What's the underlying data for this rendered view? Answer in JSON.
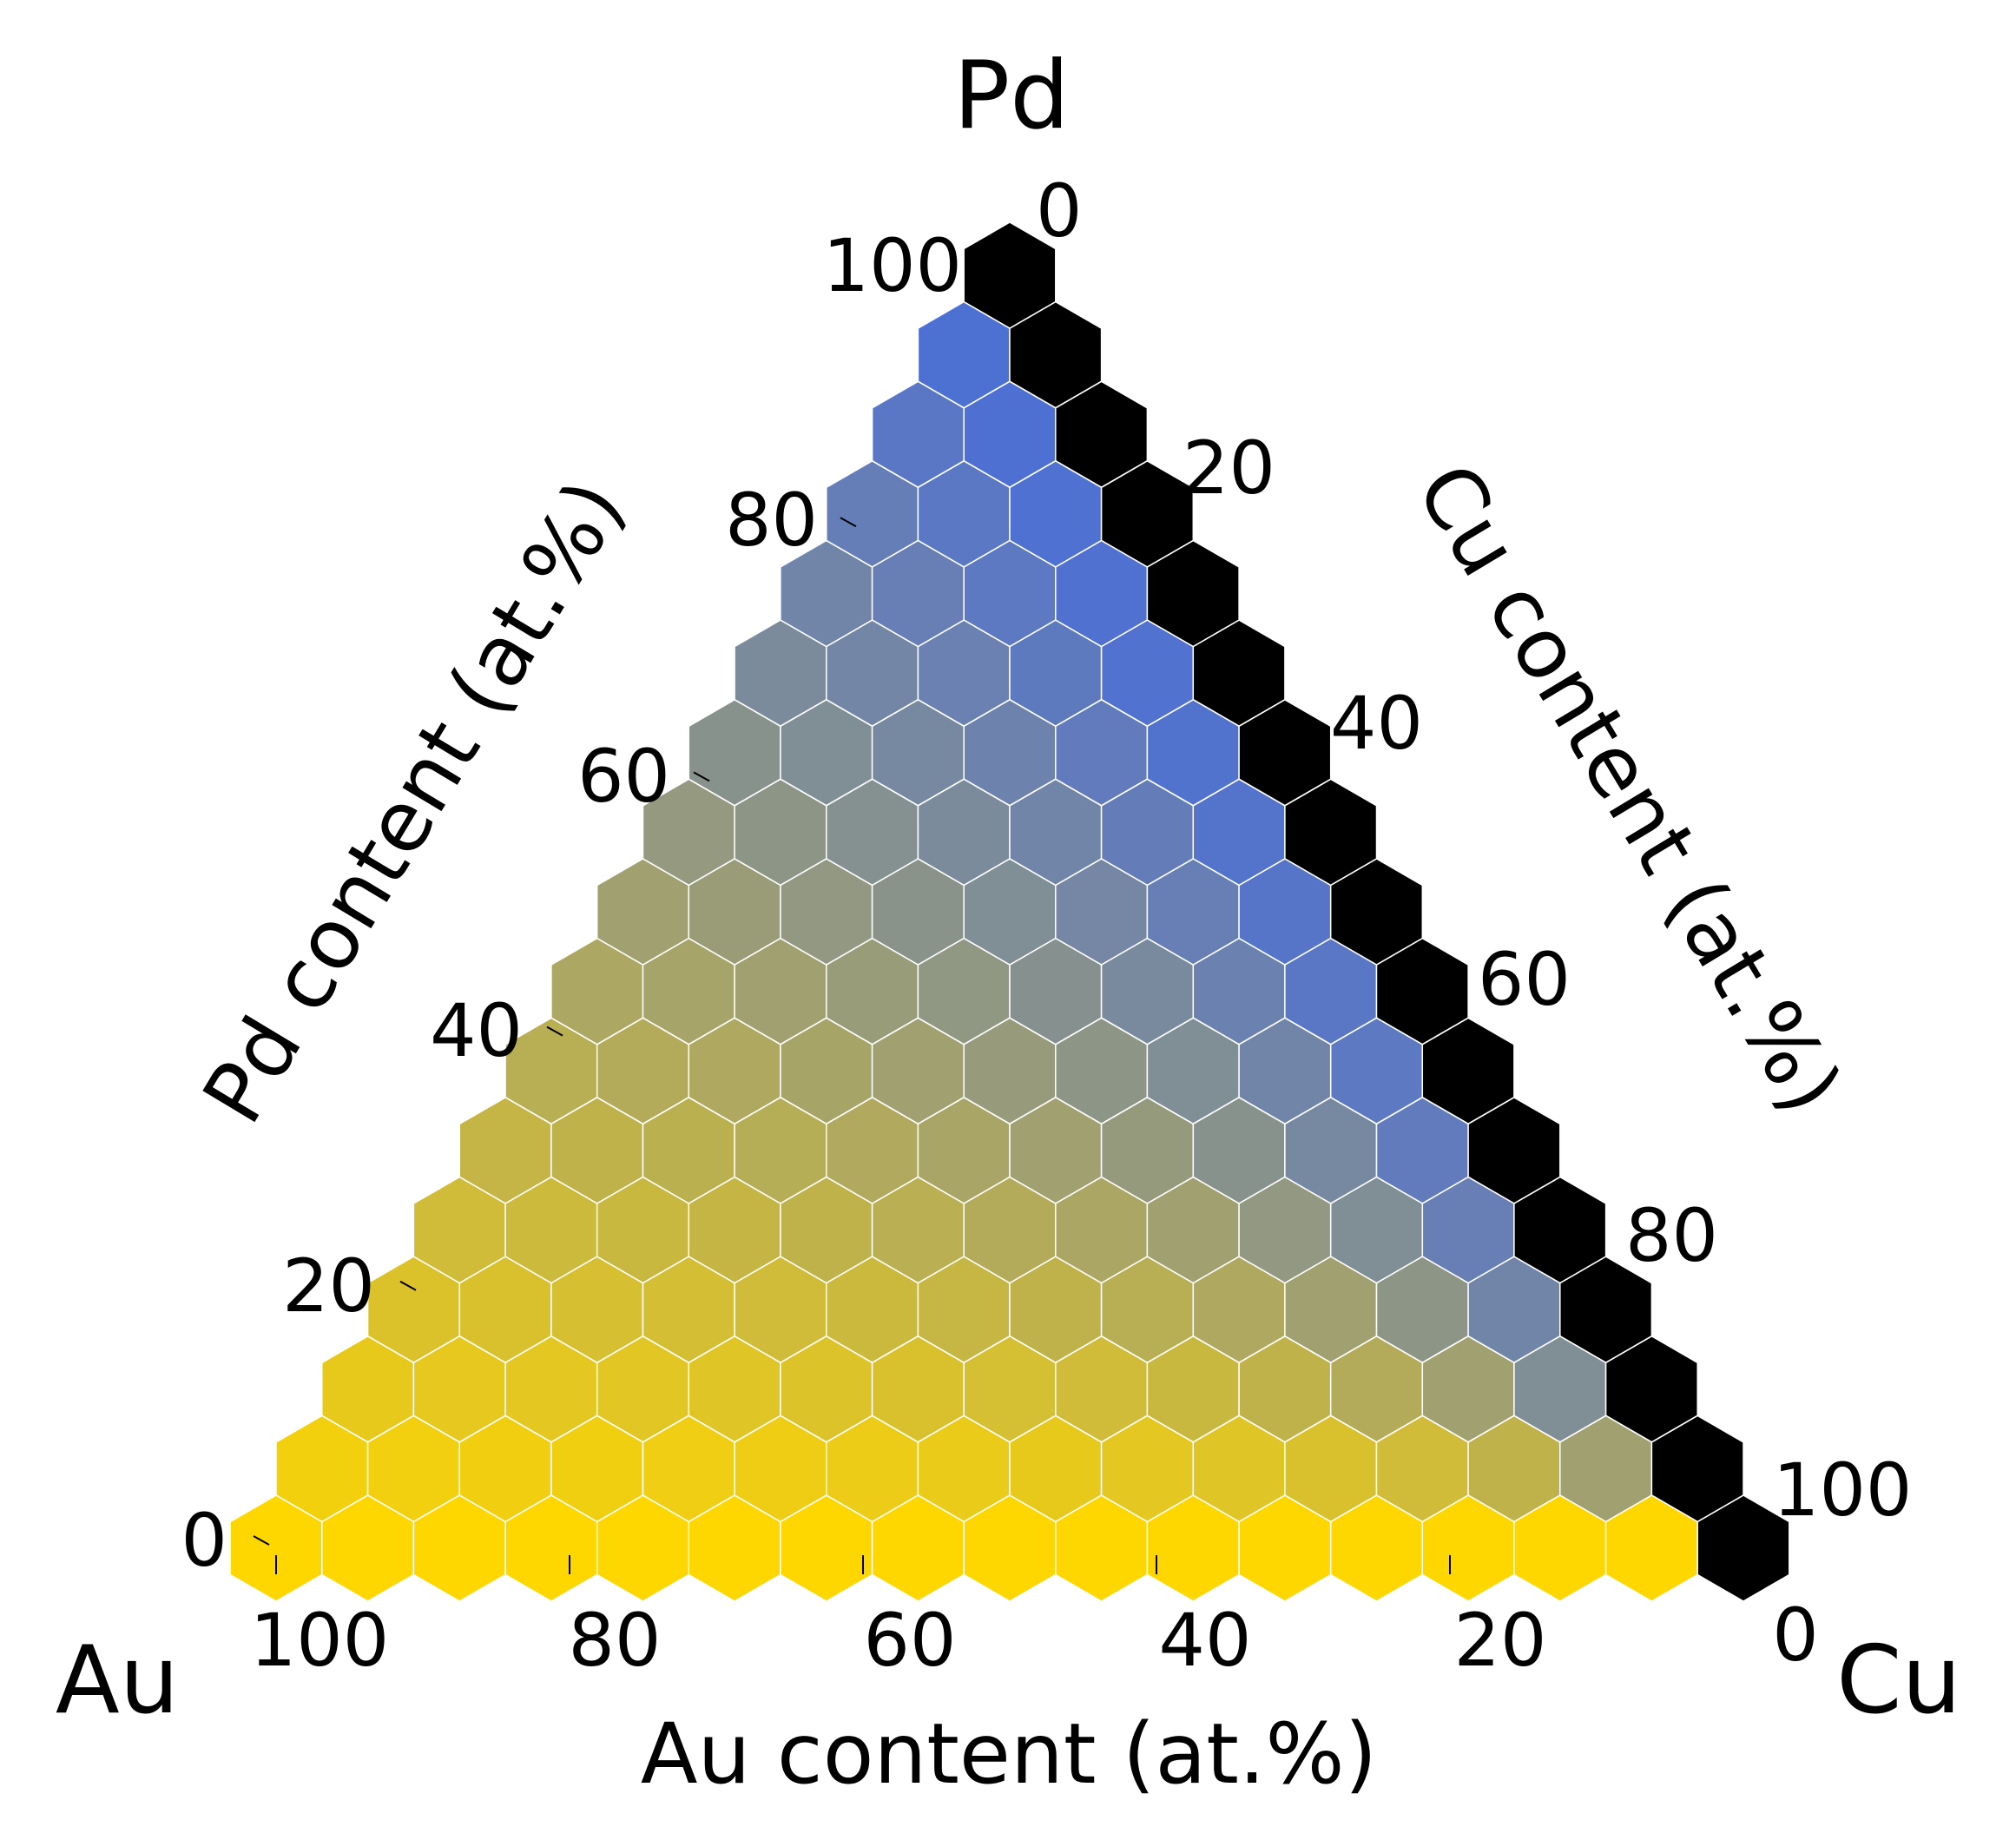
{
  "chart_data": {
    "type": "heatmap",
    "subtype": "ternary-hexbin",
    "corners": {
      "top": "Pd",
      "left": "Au",
      "right": "Cu"
    },
    "axes": {
      "bottom": {
        "label": "Au content (at.%)",
        "ticks": [
          "100",
          "80",
          "60",
          "40",
          "20",
          "0"
        ],
        "range": [
          0,
          100
        ]
      },
      "left": {
        "label": "Pd content (at.%)",
        "ticks": [
          "0",
          "20",
          "40",
          "60",
          "80",
          "100"
        ],
        "range": [
          0,
          100
        ]
      },
      "right": {
        "label": "Cu content (at.%)",
        "ticks": [
          "0",
          "20",
          "40",
          "60",
          "80",
          "100"
        ],
        "range": [
          0,
          100
        ]
      }
    },
    "grid_divisions": 17,
    "color_encoding": {
      "Au_rich": "#FFD700",
      "Pd_rich": "#4169E1",
      "Cu_dominant": "#000000",
      "cell_edge": "#ffffff"
    },
    "legend": "none"
  }
}
